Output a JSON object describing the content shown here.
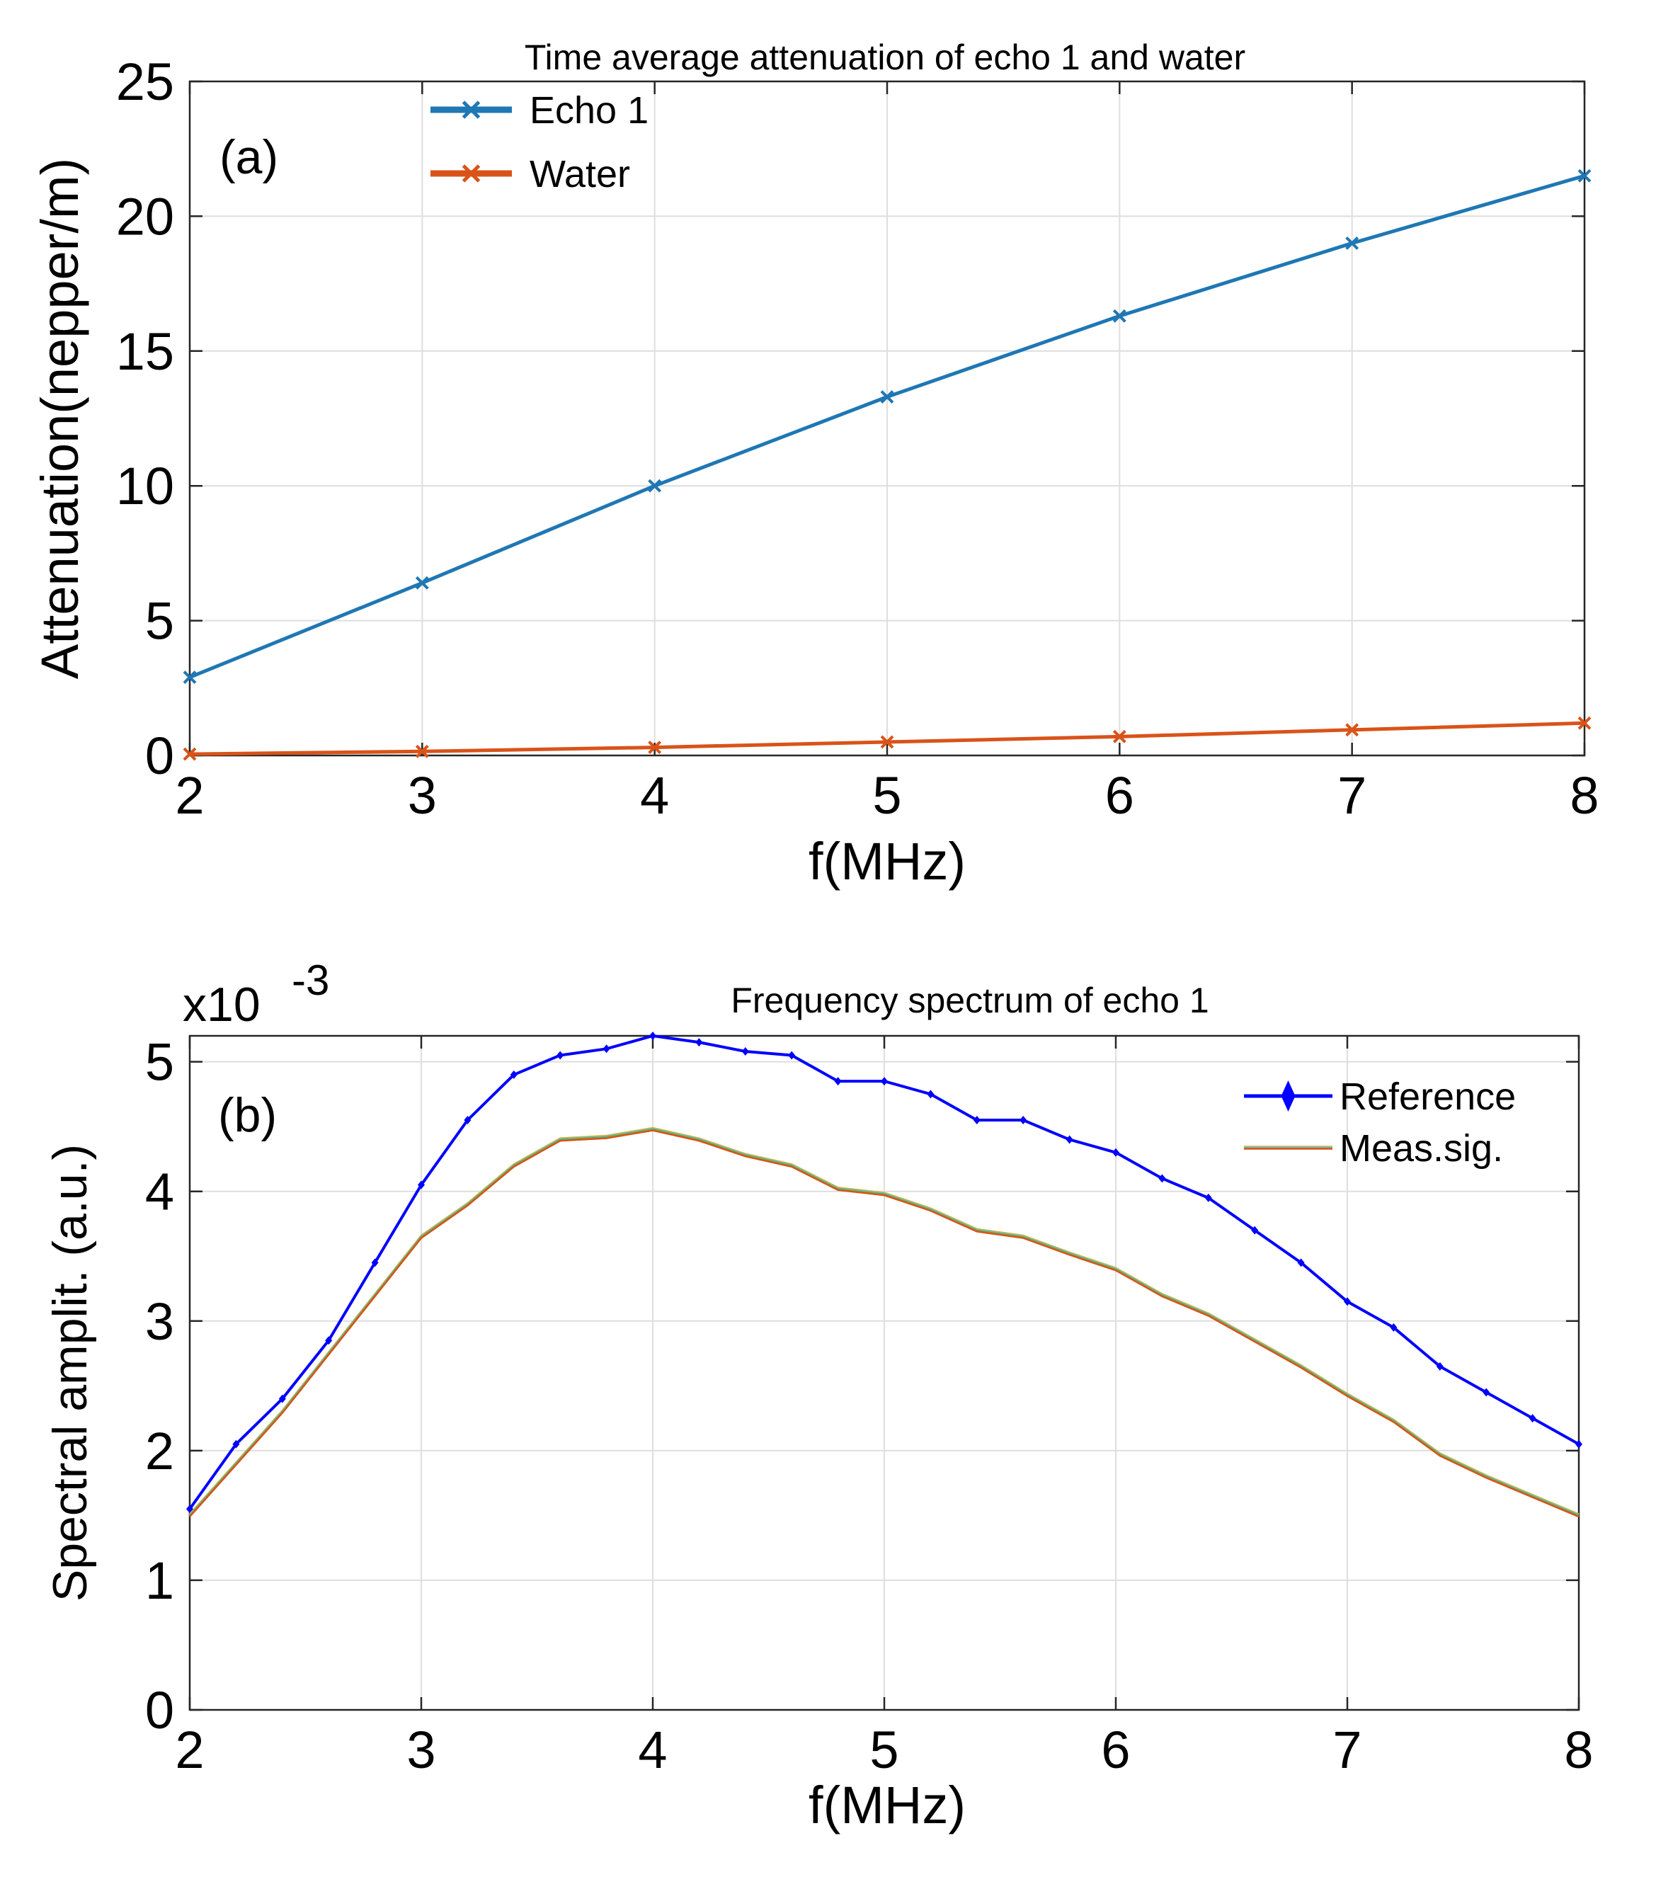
{
  "chart_data": [
    {
      "id": "a",
      "type": "line",
      "title": "Time average attenuation of echo 1 and water",
      "panel_label": "(a)",
      "xlabel": "f(MHz)",
      "ylabel": "Attenuation(nepper/m)",
      "xlim": [
        2,
        8
      ],
      "ylim": [
        0,
        25
      ],
      "xticks": [
        2,
        3,
        4,
        5,
        6,
        7,
        8
      ],
      "yticks": [
        0,
        5,
        10,
        15,
        20,
        25
      ],
      "grid": true,
      "legend_position": "top-left",
      "x": [
        2,
        3,
        4,
        5,
        6,
        7,
        8
      ],
      "series": [
        {
          "name": "Echo 1",
          "color": "#1f77b4",
          "marker": "x",
          "values": [
            2.9,
            6.4,
            10.0,
            13.3,
            16.3,
            19.0,
            21.5
          ]
        },
        {
          "name": "Water",
          "color": "#d95319",
          "marker": "x",
          "values": [
            0.05,
            0.15,
            0.3,
            0.5,
            0.7,
            0.95,
            1.2
          ]
        }
      ]
    },
    {
      "id": "b",
      "type": "line",
      "title": "Frequency spectrum of echo 1",
      "panel_label": "(b)",
      "xlabel": "f(MHz)",
      "ylabel": "Spectral amplit. (a.u.)",
      "exponent_label": "x10",
      "exponent_power": "-3",
      "xlim": [
        2,
        8
      ],
      "ylim": [
        0,
        5.2
      ],
      "xticks": [
        2,
        3,
        4,
        5,
        6,
        7,
        8
      ],
      "yticks": [
        0,
        1,
        2,
        3,
        4,
        5
      ],
      "grid": true,
      "legend_position": "top-right",
      "x": [
        2.0,
        2.2,
        2.4,
        2.6,
        2.8,
        3.0,
        3.2,
        3.4,
        3.6,
        3.8,
        4.0,
        4.2,
        4.4,
        4.6,
        4.8,
        5.0,
        5.2,
        5.4,
        5.6,
        5.8,
        6.0,
        6.2,
        6.4,
        6.6,
        6.8,
        7.0,
        7.2,
        7.4,
        7.6,
        7.8,
        8.0
      ],
      "series": [
        {
          "name": "Reference",
          "color": "#0000ff",
          "marker": "diamond",
          "values": [
            1.55,
            2.05,
            2.4,
            2.85,
            3.45,
            4.05,
            4.55,
            4.9,
            5.05,
            5.1,
            5.2,
            5.15,
            5.08,
            5.05,
            4.85,
            4.85,
            4.75,
            4.55,
            4.55,
            4.4,
            4.3,
            4.1,
            3.95,
            3.7,
            3.45,
            3.15,
            2.95,
            2.65,
            2.45,
            2.25,
            2.05
          ]
        },
        {
          "name": "Meas.sig.",
          "color": "#d95319",
          "marker": "none",
          "values": [
            1.5,
            1.9,
            2.3,
            2.75,
            3.2,
            3.65,
            3.9,
            4.2,
            4.4,
            4.42,
            4.48,
            4.4,
            4.28,
            4.2,
            4.02,
            3.98,
            3.86,
            3.7,
            3.65,
            3.52,
            3.4,
            3.2,
            3.05,
            2.85,
            2.65,
            2.43,
            2.23,
            1.97,
            1.8,
            1.65,
            1.5
          ]
        }
      ]
    }
  ]
}
